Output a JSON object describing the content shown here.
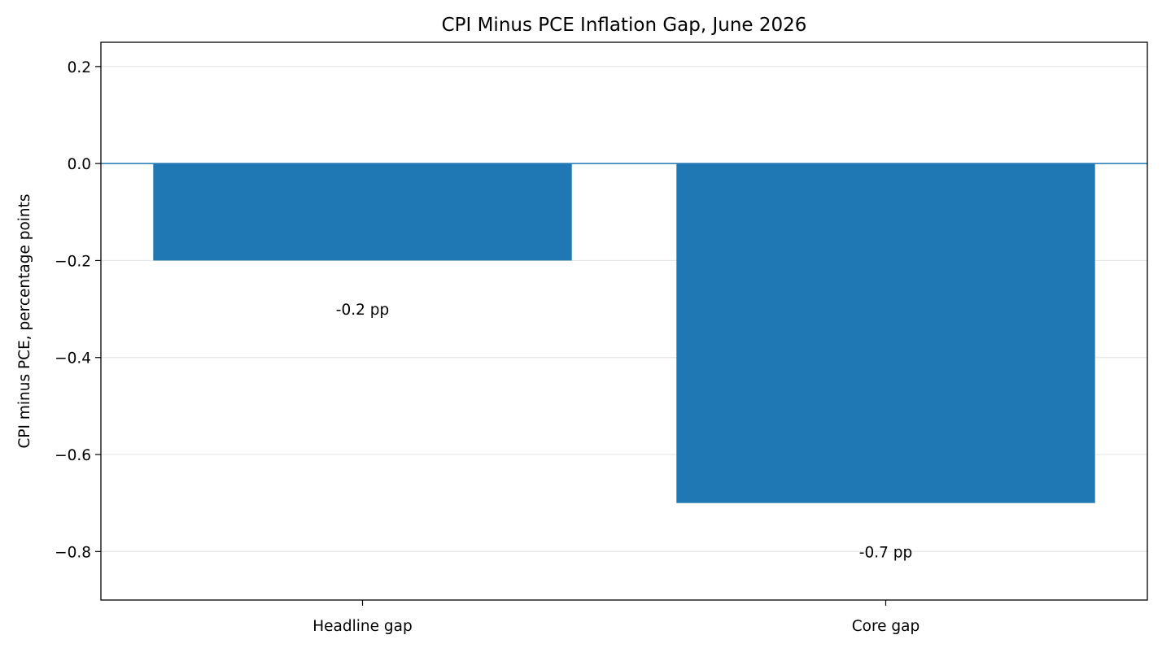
{
  "chart_data": {
    "type": "bar",
    "title": "CPI Minus PCE Inflation Gap, June 2026",
    "xlabel": "",
    "ylabel": "CPI minus PCE, percentage points",
    "categories": [
      "Headline gap",
      "Core gap"
    ],
    "values": [
      -0.2,
      -0.7
    ],
    "data_labels": [
      "-0.2 pp",
      "-0.7 pp"
    ],
    "ylim": [
      -0.9,
      0.25
    ],
    "yticks": [
      0.2,
      0.0,
      -0.2,
      -0.4,
      -0.6,
      -0.8
    ],
    "ytick_labels": [
      "0.2",
      "0.0",
      "−0.2",
      "−0.4",
      "−0.6",
      "−0.8"
    ],
    "grid": "horizontal",
    "zero_line": true,
    "colors": {
      "bar": "#1f77b4",
      "zero_line": "#1f77b4",
      "grid": "#e6e6e6"
    }
  }
}
